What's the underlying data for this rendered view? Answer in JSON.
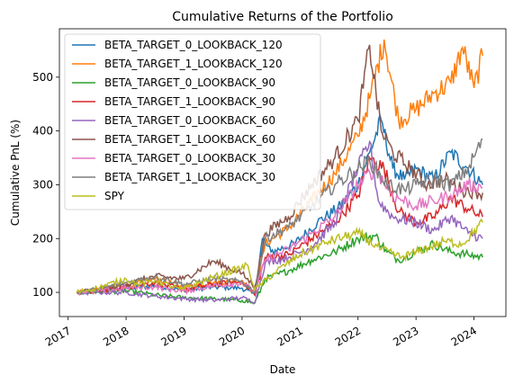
{
  "chart_data": {
    "type": "line",
    "title": "Cumulative Returns of the Portfolio",
    "xlabel": "Date",
    "ylabel": "Cumulative PnL (%)",
    "xlim": [
      2016.85,
      2024.55
    ],
    "ylim": [
      55,
      590
    ],
    "x_ticks": [
      2017,
      2018,
      2019,
      2020,
      2021,
      2022,
      2023,
      2024
    ],
    "x_tick_labels": [
      "2017",
      "2018",
      "2019",
      "2020",
      "2021",
      "2022",
      "2023",
      "2024"
    ],
    "y_ticks": [
      100,
      200,
      300,
      400,
      500
    ],
    "y_tick_labels": [
      "100",
      "200",
      "300",
      "400",
      "500"
    ],
    "legend_position": "top-left",
    "grid": false,
    "series": [
      {
        "name": "BETA_TARGET_0_LOOKBACK_120",
        "color": "#1f77b4",
        "x": [
          2017.15,
          2017.5,
          2018.0,
          2018.5,
          2019.0,
          2019.5,
          2020.0,
          2020.22,
          2020.35,
          2020.5,
          2020.9,
          2021.3,
          2021.7,
          2022.0,
          2022.2,
          2022.4,
          2022.6,
          2022.8,
          2023.0,
          2023.3,
          2023.6,
          2023.9,
          2024.15
        ],
        "y": [
          100,
          102,
          108,
          112,
          105,
          110,
          108,
          95,
          200,
          175,
          190,
          230,
          260,
          300,
          360,
          420,
          330,
          310,
          330,
          310,
          360,
          330,
          300
        ]
      },
      {
        "name": "BETA_TARGET_1_LOOKBACK_120",
        "color": "#ff7f0e",
        "x": [
          2017.15,
          2017.5,
          2018.0,
          2018.5,
          2019.0,
          2019.5,
          2020.0,
          2020.22,
          2020.4,
          2020.8,
          2021.2,
          2021.6,
          2022.0,
          2022.2,
          2022.45,
          2022.7,
          2023.0,
          2023.3,
          2023.6,
          2023.8,
          2024.0,
          2024.15
        ],
        "y": [
          100,
          104,
          112,
          125,
          110,
          118,
          122,
          98,
          190,
          220,
          270,
          320,
          390,
          460,
          570,
          420,
          440,
          470,
          490,
          555,
          480,
          540
        ]
      },
      {
        "name": "BETA_TARGET_0_LOOKBACK_90",
        "color": "#2ca02c",
        "x": [
          2017.15,
          2017.5,
          2018.0,
          2018.5,
          2019.0,
          2019.5,
          2020.0,
          2020.22,
          2020.4,
          2020.8,
          2021.2,
          2021.6,
          2022.0,
          2022.3,
          2022.5,
          2022.7,
          2023.0,
          2023.3,
          2023.6,
          2023.9,
          2024.15
        ],
        "y": [
          100,
          101,
          103,
          95,
          90,
          88,
          85,
          80,
          125,
          140,
          160,
          175,
          200,
          205,
          175,
          160,
          175,
          190,
          175,
          170,
          165
        ]
      },
      {
        "name": "BETA_TARGET_1_LOOKBACK_90",
        "color": "#d62728",
        "x": [
          2017.15,
          2017.5,
          2018.0,
          2018.5,
          2019.0,
          2019.5,
          2020.0,
          2020.22,
          2020.4,
          2020.8,
          2021.2,
          2021.6,
          2022.0,
          2022.2,
          2022.45,
          2022.7,
          2023.0,
          2023.3,
          2023.6,
          2023.9,
          2024.15
        ],
        "y": [
          100,
          103,
          110,
          118,
          105,
          115,
          120,
          95,
          165,
          170,
          200,
          230,
          280,
          350,
          330,
          250,
          230,
          240,
          275,
          255,
          240
        ]
      },
      {
        "name": "BETA_TARGET_0_LOOKBACK_60",
        "color": "#9467bd",
        "x": [
          2017.15,
          2017.5,
          2018.0,
          2018.5,
          2019.0,
          2019.5,
          2020.0,
          2020.22,
          2020.4,
          2020.8,
          2021.2,
          2021.6,
          2022.0,
          2022.2,
          2022.35,
          2022.6,
          2023.0,
          2023.3,
          2023.6,
          2023.9,
          2024.15
        ],
        "y": [
          100,
          100,
          100,
          93,
          88,
          85,
          90,
          82,
          155,
          165,
          185,
          230,
          330,
          380,
          270,
          240,
          230,
          215,
          240,
          210,
          200
        ]
      },
      {
        "name": "BETA_TARGET_1_LOOKBACK_60",
        "color": "#8c564b",
        "x": [
          2017.15,
          2017.5,
          2018.0,
          2018.5,
          2019.0,
          2019.5,
          2020.0,
          2020.22,
          2020.4,
          2020.8,
          2021.2,
          2021.6,
          2022.0,
          2022.2,
          2022.4,
          2022.6,
          2022.9,
          2023.2,
          2023.5,
          2023.8,
          2024.15
        ],
        "y": [
          100,
          104,
          115,
          130,
          125,
          158,
          135,
          110,
          210,
          240,
          300,
          350,
          420,
          560,
          400,
          360,
          330,
          300,
          310,
          290,
          285
        ]
      },
      {
        "name": "BETA_TARGET_0_LOOKBACK_30",
        "color": "#e377c2",
        "x": [
          2017.15,
          2017.5,
          2018.0,
          2018.5,
          2019.0,
          2019.5,
          2020.0,
          2020.22,
          2020.4,
          2020.8,
          2021.2,
          2021.6,
          2022.0,
          2022.3,
          2022.6,
          2023.0,
          2023.3,
          2023.6,
          2023.9,
          2024.15
        ],
        "y": [
          100,
          102,
          108,
          110,
          102,
          112,
          118,
          100,
          160,
          180,
          210,
          240,
          300,
          330,
          280,
          260,
          270,
          280,
          300,
          295
        ]
      },
      {
        "name": "BETA_TARGET_1_LOOKBACK_30",
        "color": "#7f7f7f",
        "x": [
          2017.15,
          2017.5,
          2018.0,
          2018.5,
          2019.0,
          2019.5,
          2020.0,
          2020.22,
          2020.4,
          2020.8,
          2021.2,
          2021.6,
          2022.0,
          2022.2,
          2022.5,
          2022.8,
          2023.0,
          2023.3,
          2023.6,
          2023.9,
          2024.15
        ],
        "y": [
          100,
          105,
          118,
          130,
          115,
          125,
          120,
          100,
          200,
          220,
          260,
          300,
          330,
          345,
          300,
          290,
          300,
          310,
          300,
          330,
          385
        ]
      },
      {
        "name": "SPY",
        "color": "#bcbd22",
        "x": [
          2017.15,
          2017.5,
          2018.0,
          2018.2,
          2018.5,
          2018.95,
          2019.5,
          2020.1,
          2020.22,
          2020.6,
          2021.0,
          2021.5,
          2022.0,
          2022.4,
          2022.75,
          2023.0,
          2023.5,
          2023.8,
          2024.15
        ],
        "y": [
          100,
          108,
          125,
          115,
          122,
          105,
          128,
          150,
          105,
          140,
          170,
          195,
          210,
          180,
          165,
          175,
          195,
          190,
          230
        ]
      }
    ]
  }
}
